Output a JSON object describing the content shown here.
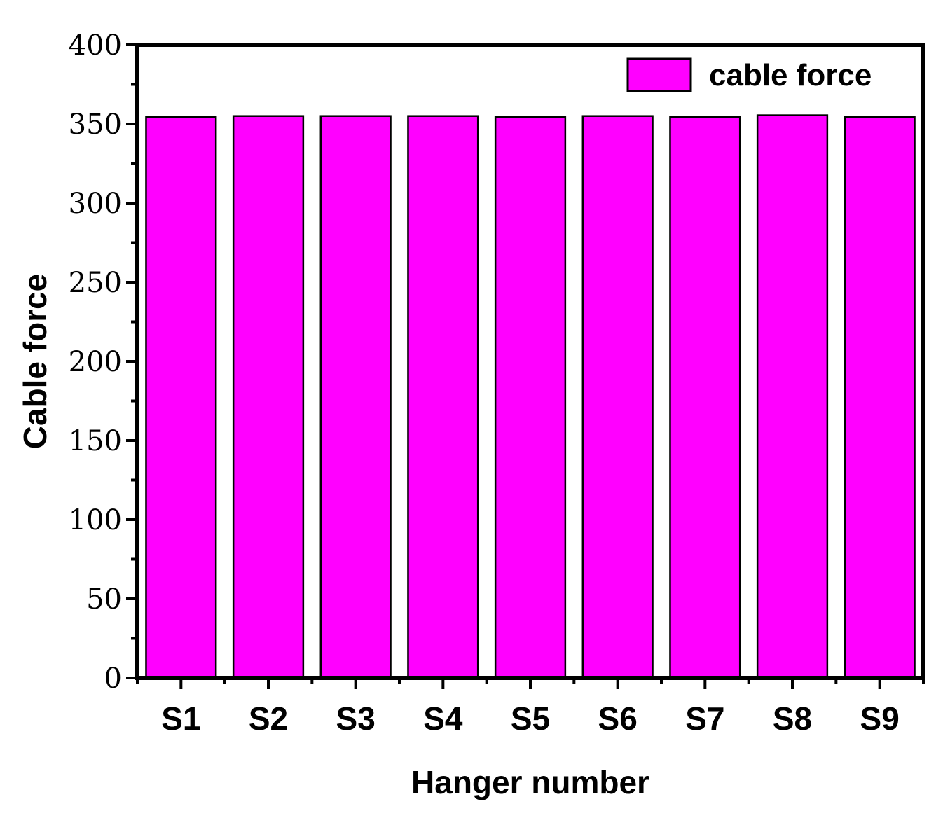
{
  "chart_data": {
    "type": "bar",
    "xlabel": "Hanger number",
    "ylabel": "Cable force",
    "categories": [
      "S1",
      "S2",
      "S3",
      "S4",
      "S5",
      "S6",
      "S7",
      "S8",
      "S9"
    ],
    "series": [
      {
        "name": "cable force",
        "values": [
          354.5,
          355,
          355,
          355,
          354.5,
          355,
          354.5,
          355.5,
          354.5
        ]
      }
    ],
    "ylim": [
      0,
      400
    ],
    "yticks": [
      0,
      50,
      100,
      150,
      200,
      250,
      300,
      350,
      400
    ],
    "grid": false,
    "legend_position": "top-right",
    "colors": {
      "bar_fill": "#ff00ff",
      "bar_stroke": "#000000"
    }
  }
}
